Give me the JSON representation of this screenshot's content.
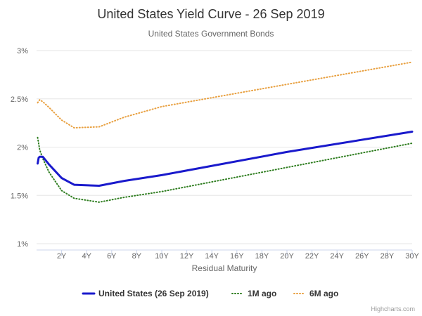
{
  "chart_data": {
    "type": "line",
    "title": "United States Yield Curve - 26 Sep 2019",
    "subtitle": "United States Government Bonds",
    "xlabel": "Residual Maturity",
    "ylabel": "",
    "xlim": [
      0,
      30
    ],
    "ylim": [
      1,
      3
    ],
    "x_ticks": [
      {
        "value": 2,
        "label": "2Y"
      },
      {
        "value": 4,
        "label": "4Y"
      },
      {
        "value": 6,
        "label": "6Y"
      },
      {
        "value": 8,
        "label": "8Y"
      },
      {
        "value": 10,
        "label": "10Y"
      },
      {
        "value": 12,
        "label": "12Y"
      },
      {
        "value": 14,
        "label": "14Y"
      },
      {
        "value": 16,
        "label": "16Y"
      },
      {
        "value": 18,
        "label": "18Y"
      },
      {
        "value": 20,
        "label": "20Y"
      },
      {
        "value": 22,
        "label": "22Y"
      },
      {
        "value": 24,
        "label": "24Y"
      },
      {
        "value": 26,
        "label": "26Y"
      },
      {
        "value": 28,
        "label": "28Y"
      },
      {
        "value": 30,
        "label": "30Y"
      }
    ],
    "y_ticks": [
      {
        "value": 1,
        "label": "1%"
      },
      {
        "value": 1.5,
        "label": "1.5%"
      },
      {
        "value": 2,
        "label": "2%"
      },
      {
        "value": 2.5,
        "label": "2.5%"
      },
      {
        "value": 3,
        "label": "3%"
      }
    ],
    "grid": true,
    "legend_position": "bottom-center",
    "series": [
      {
        "name": "United States (26 Sep 2019)",
        "color": "#1a1acc",
        "style": "solid",
        "points": [
          [
            0.083,
            1.83
          ],
          [
            0.167,
            1.89
          ],
          [
            0.25,
            1.9
          ],
          [
            0.5,
            1.9
          ],
          [
            1,
            1.82
          ],
          [
            2,
            1.68
          ],
          [
            3,
            1.61
          ],
          [
            5,
            1.6
          ],
          [
            7,
            1.65
          ],
          [
            10,
            1.71
          ],
          [
            20,
            1.95
          ],
          [
            30,
            2.16
          ]
        ]
      },
      {
        "name": "1M ago",
        "color": "#2e7d1f",
        "style": "dotted",
        "points": [
          [
            0.083,
            2.1
          ],
          [
            0.25,
            1.97
          ],
          [
            0.5,
            1.88
          ],
          [
            1,
            1.74
          ],
          [
            2,
            1.55
          ],
          [
            3,
            1.47
          ],
          [
            5,
            1.43
          ],
          [
            7,
            1.48
          ],
          [
            10,
            1.54
          ],
          [
            20,
            1.79
          ],
          [
            30,
            2.04
          ]
        ]
      },
      {
        "name": "6M ago",
        "color": "#e8a040",
        "style": "dotted",
        "points": [
          [
            0.083,
            2.46
          ],
          [
            0.25,
            2.49
          ],
          [
            0.5,
            2.47
          ],
          [
            1,
            2.41
          ],
          [
            2,
            2.28
          ],
          [
            3,
            2.2
          ],
          [
            5,
            2.21
          ],
          [
            7,
            2.31
          ],
          [
            10,
            2.42
          ],
          [
            20,
            2.65
          ],
          [
            30,
            2.88
          ]
        ]
      }
    ]
  },
  "credits": "Highcharts.com"
}
